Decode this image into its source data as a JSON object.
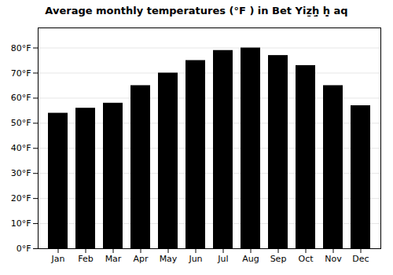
{
  "chart_data": {
    "type": "bar",
    "title": "Average monthly temperatures (°F ) in Bet Yiẕẖ̣ ḥ̣ aq",
    "categories": [
      "Jan",
      "Feb",
      "Mar",
      "Apr",
      "May",
      "Jun",
      "Jul",
      "Aug",
      "Sep",
      "Oct",
      "Nov",
      "Dec"
    ],
    "values": [
      54,
      56,
      58,
      65,
      70,
      75,
      79,
      80,
      77,
      73,
      65,
      57
    ],
    "ylim": [
      0,
      88
    ],
    "yticks": [
      {
        "value": 0,
        "label": "0°F"
      },
      {
        "value": 10,
        "label": "10°F"
      },
      {
        "value": 20,
        "label": "20°F"
      },
      {
        "value": 30,
        "label": "30°F"
      },
      {
        "value": 40,
        "label": "40°F"
      },
      {
        "value": 50,
        "label": "50°F"
      },
      {
        "value": 60,
        "label": "60°F"
      },
      {
        "value": 70,
        "label": "70°F"
      },
      {
        "value": 80,
        "label": "80°F"
      }
    ],
    "grid": true
  }
}
